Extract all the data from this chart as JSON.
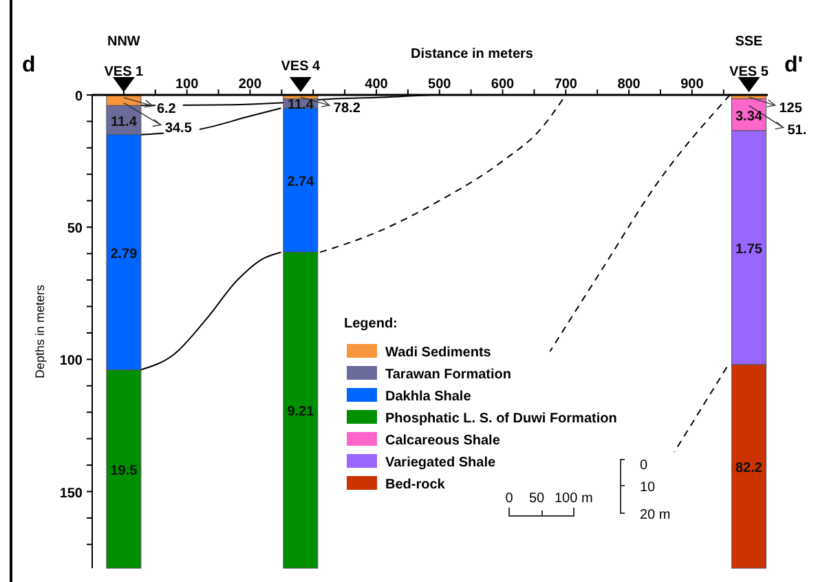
{
  "chart_data": {
    "type": "bar",
    "stacked": true,
    "xlabel": "Distance in meters",
    "ylabel": "Depths in meters",
    "legend_title": "Legend:",
    "legend": "bottom",
    "x": [
      0,
      280,
      990
    ],
    "xlim": [
      -50,
      1020
    ],
    "xticks": [
      {
        "value": 0,
        "label": null
      },
      {
        "value": 50,
        "label": null
      },
      100,
      {
        "value": 150,
        "label": null
      },
      200,
      {
        "value": 250,
        "label": null
      },
      {
        "value": 300,
        "label": null
      },
      {
        "value": 350,
        "label": null
      },
      400,
      {
        "value": 450,
        "label": null
      },
      500,
      {
        "value": 550,
        "label": null
      },
      600,
      {
        "value": 650,
        "label": null
      },
      700,
      {
        "value": 750,
        "label": null
      },
      800,
      {
        "value": 850,
        "label": null
      },
      900,
      {
        "value": 950,
        "label": null
      }
    ],
    "ylim": [
      179,
      0
    ],
    "yticks": [
      0,
      {
        "value": 10,
        "label": null
      },
      {
        "value": 20,
        "label": null
      },
      {
        "value": 30,
        "label": null
      },
      {
        "value": 40,
        "label": null
      },
      50,
      {
        "value": 60,
        "label": null
      },
      {
        "value": 70,
        "label": null
      },
      {
        "value": 80,
        "label": null
      },
      {
        "value": 90,
        "label": null
      },
      100,
      {
        "value": 110,
        "label": null
      },
      {
        "value": 120,
        "label": null
      },
      {
        "value": 130,
        "label": null
      },
      {
        "value": 140,
        "label": null
      },
      150,
      {
        "value": 160,
        "label": null
      },
      {
        "value": 170,
        "label": null
      }
    ],
    "series": [
      {
        "name": "Wadi Sediments",
        "color": "#f7963c",
        "values": [
          4,
          1.5,
          1.5
        ]
      },
      {
        "name": "Tarawan Formation",
        "color": "#6b6b9b",
        "values": [
          11,
          3.5,
          null
        ]
      },
      {
        "name": "Dakhla Shale",
        "color": "#0066ff",
        "values": [
          89,
          54.5,
          null
        ]
      },
      {
        "name": "Phosphatic L. S. of Duwi Formation",
        "color": "#008f00",
        "values": [
          75,
          119.5,
          null
        ]
      },
      {
        "name": "Calcareous Shale",
        "color": "#ff66cc",
        "values": [
          null,
          null,
          12
        ]
      },
      {
        "name": "Variegated Shale",
        "color": "#9966ff",
        "values": [
          null,
          null,
          88.5
        ]
      },
      {
        "name": "Bed-rock",
        "color": "#cc3300",
        "values": [
          null,
          null,
          77
        ]
      },
      {
        "type": "line",
        "color": "#000000",
        "line_style": "solid",
        "x": [
          26,
          150,
          249,
          330,
          400,
          485
        ],
        "values": [
          4,
          3.8,
          3,
          1.5,
          1,
          0
        ]
      },
      {
        "type": "line",
        "color": "#000000",
        "line_style": "solid",
        "x": [
          26,
          120,
          200,
          249
        ],
        "values": [
          15,
          13,
          8,
          5
        ]
      },
      {
        "type": "line",
        "color": "#000000",
        "line_style": "solid",
        "x": [
          26,
          80,
          130,
          180,
          220,
          249
        ],
        "values": [
          104,
          98,
          85,
          70,
          62,
          59.5
        ]
      },
      {
        "type": "line",
        "color": "#000000",
        "line_style": "dashed",
        "x": [
          311,
          400,
          500,
          600,
          660,
          700
        ],
        "values": [
          59.5,
          52,
          40,
          25,
          13,
          0
        ]
      },
      {
        "type": "line",
        "color": "#000000",
        "line_style": "dashed",
        "x": [
          960,
          843,
          760,
          675
        ],
        "values": [
          0,
          34,
          65,
          97
        ]
      },
      {
        "type": "line",
        "color": "#000000",
        "line_style": "dashed",
        "x": [
          955,
          872
        ],
        "values": [
          103,
          135
        ]
      }
    ],
    "annotations": [
      "NNW",
      "VES 1",
      "VES 4",
      "SSE",
      "VES 5",
      "d",
      "d'",
      "0",
      "50",
      "100 m",
      "0",
      "10",
      "20 m",
      "11.4",
      "11.4",
      "2.79",
      "2.74",
      "19.5",
      "9.21",
      "3.34",
      "1.75",
      "82.2",
      {
        "text": "6.2",
        "x": 0,
        "y": 1
      },
      {
        "text": "34.5",
        "x": 0,
        "y": 3
      },
      {
        "text": "78.2",
        "x": 280,
        "y": 0.8
      },
      {
        "text": "125",
        "x": 990,
        "y": 0.8
      },
      {
        "text": "51.",
        "x": 990,
        "y": 4
      }
    ]
  }
}
